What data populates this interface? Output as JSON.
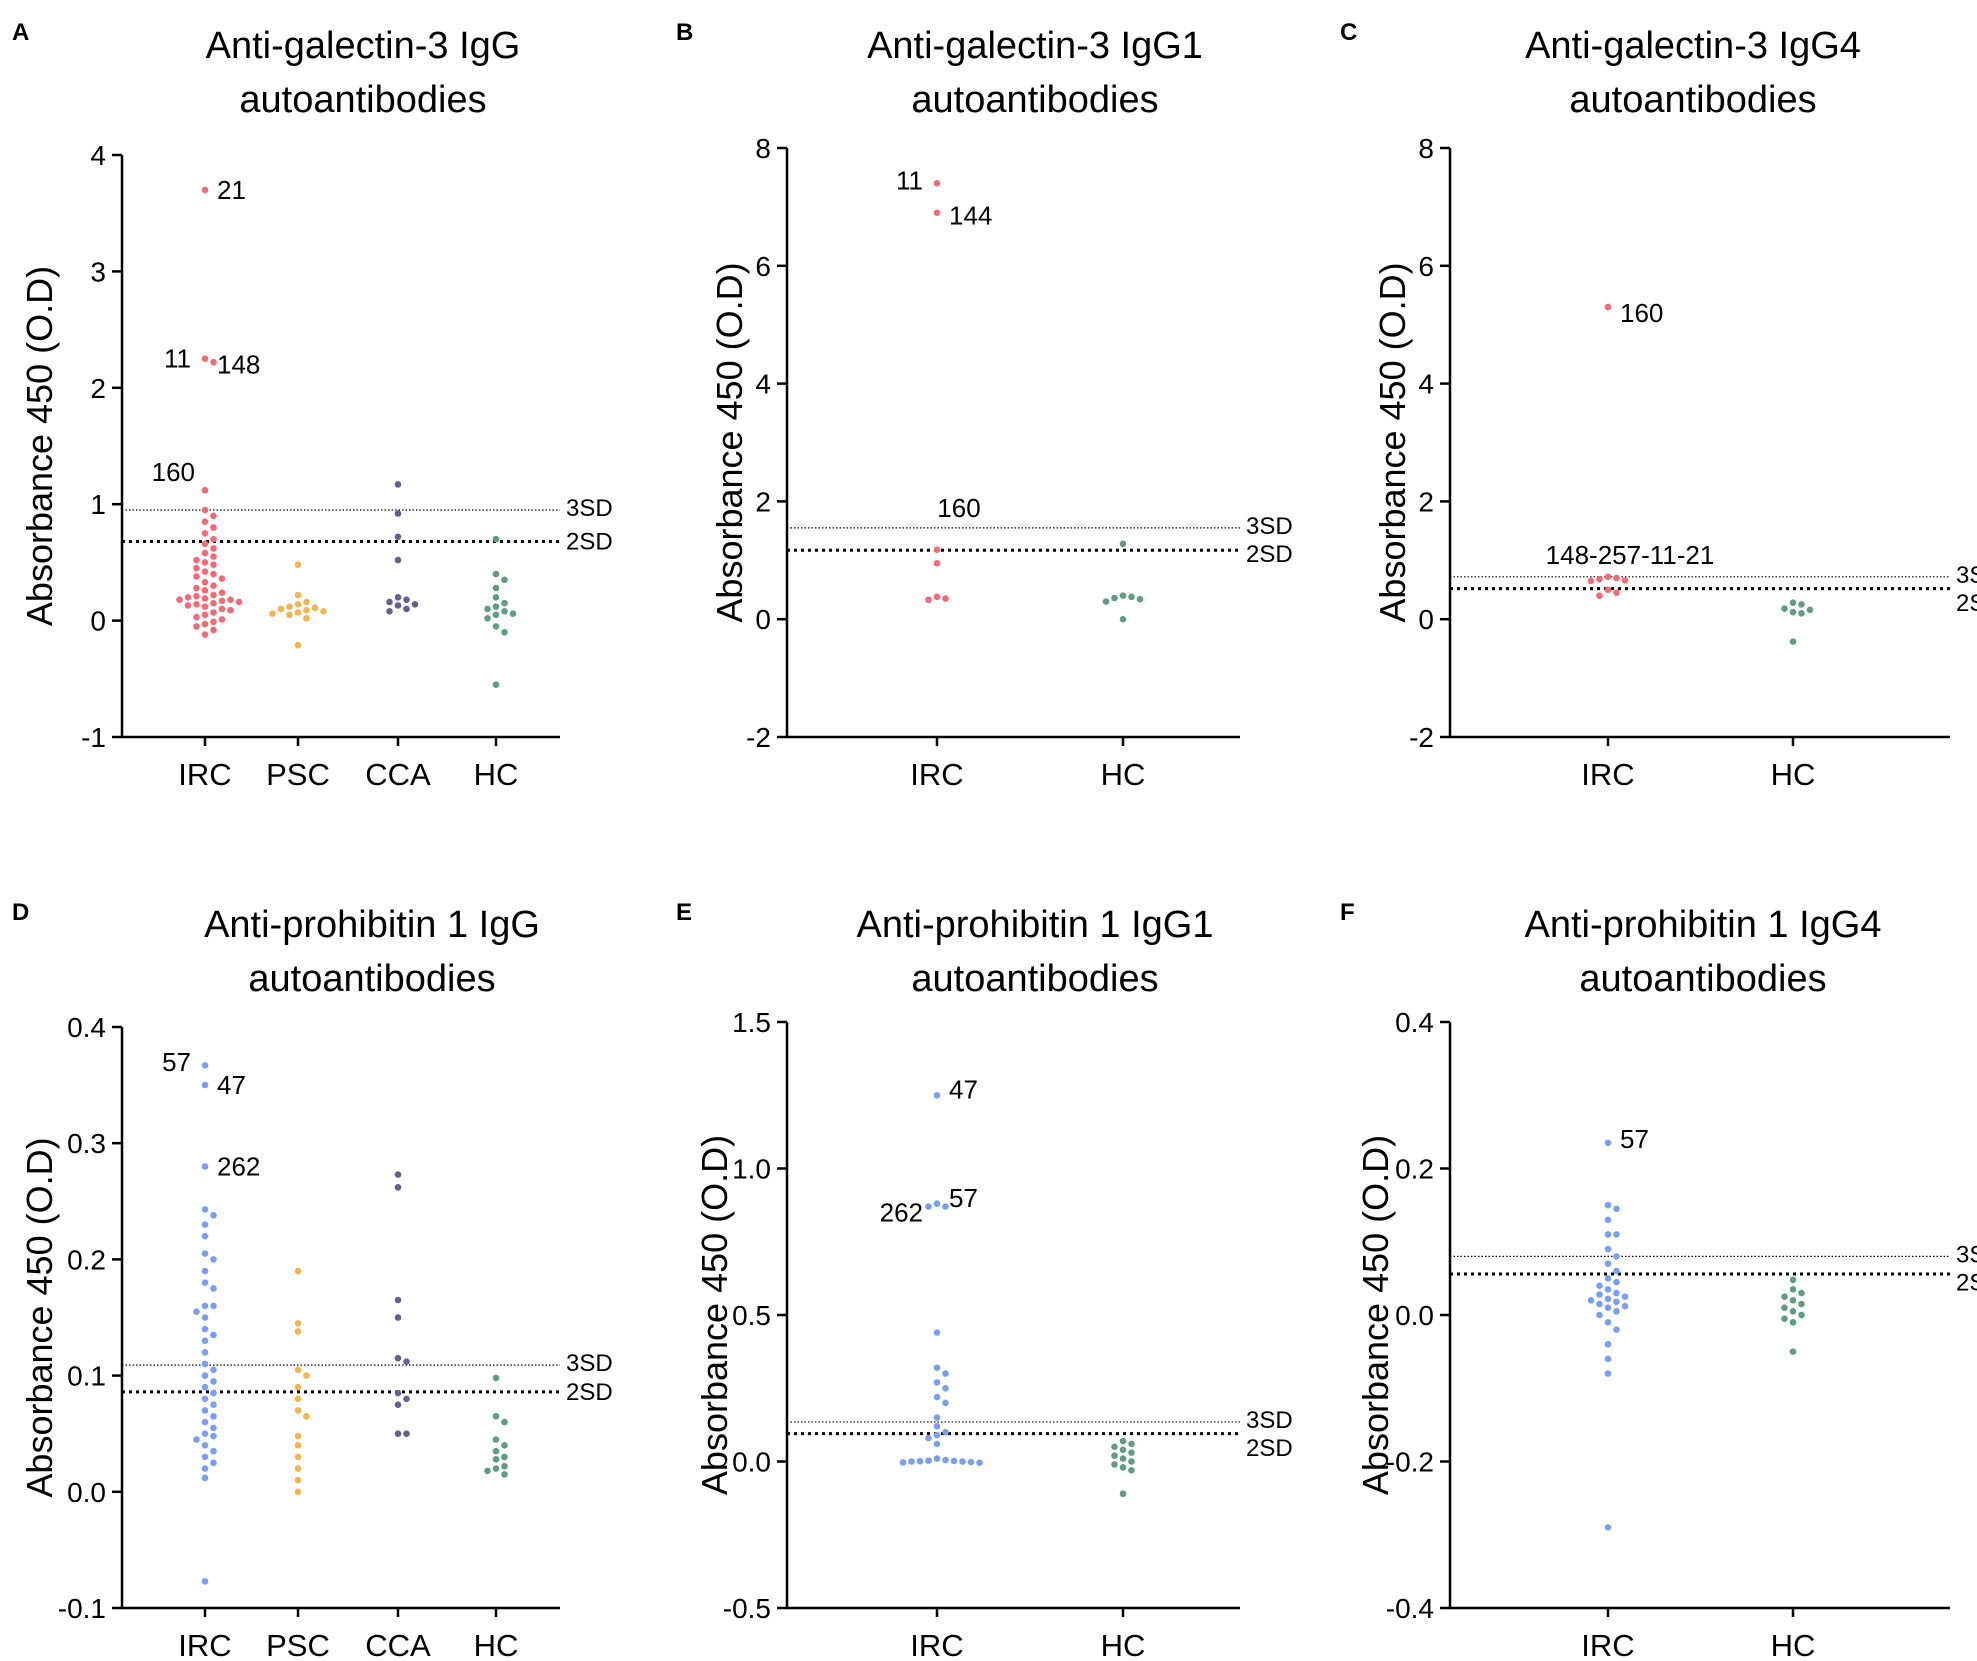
{
  "figure": {
    "sd_labels": {
      "three": "3SD",
      "two": "2SD"
    }
  },
  "chart_data": [
    {
      "panel": "A",
      "type": "scatter",
      "title_lines": [
        "Anti-galectin-3 IgG",
        "autoantibodies"
      ],
      "ylabel": "Absorbance 450 (O.D)",
      "ylim": [
        -1,
        4
      ],
      "yticks": [
        -1,
        0,
        1,
        2,
        3,
        4
      ],
      "tick_decimals": 0,
      "categories": [
        "IRC",
        "PSC",
        "CCA",
        "HC"
      ],
      "thresholds": {
        "three_sd": 0.95,
        "two_sd": 0.68
      },
      "series": [
        {
          "name": "IRC",
          "color": "#f26a73",
          "values": [
            3.7,
            2.25,
            2.22,
            1.12,
            0.95,
            0.9,
            0.85,
            0.8,
            0.75,
            0.7,
            0.66,
            0.62,
            0.58,
            0.55,
            0.52,
            0.5,
            0.48,
            0.45,
            0.42,
            0.4,
            0.38,
            0.36,
            0.33,
            0.3,
            0.28,
            0.26,
            0.24,
            0.22,
            0.21,
            0.2,
            0.19,
            0.18,
            0.18,
            0.17,
            0.16,
            0.15,
            0.14,
            0.13,
            0.12,
            0.1,
            0.09,
            0.07,
            0.05,
            0.03,
            0.01,
            -0.01,
            -0.03,
            -0.05,
            -0.08,
            -0.12
          ]
        },
        {
          "name": "PSC",
          "color": "#f4b54e",
          "values": [
            0.48,
            0.22,
            0.16,
            0.14,
            0.12,
            0.11,
            0.1,
            0.09,
            0.08,
            0.07,
            0.06,
            0.05,
            0.02,
            -0.21
          ]
        },
        {
          "name": "CCA",
          "color": "#6b5d8c",
          "values": [
            1.17,
            0.92,
            0.72,
            0.52,
            0.2,
            0.18,
            0.16,
            0.14,
            0.13,
            0.1,
            0.08
          ]
        },
        {
          "name": "HC",
          "color": "#5e9e7c",
          "values": [
            0.7,
            0.4,
            0.35,
            0.28,
            0.2,
            0.15,
            0.12,
            0.1,
            0.08,
            0.06,
            0.05,
            0.02,
            -0.05,
            -0.1,
            -0.55
          ]
        }
      ],
      "annotations": [
        {
          "text": "21",
          "x": "IRC",
          "y": 3.7,
          "side": "right"
        },
        {
          "text": "11",
          "x": "IRC",
          "y": 2.25,
          "side": "left"
        },
        {
          "text": "148",
          "x": "IRC",
          "y": 2.2,
          "side": "right"
        },
        {
          "text": "160",
          "x": "IRC",
          "y": 1.18,
          "side": "left-above"
        }
      ]
    },
    {
      "panel": "B",
      "type": "scatter",
      "title_lines": [
        "Anti-galectin-3 IgG1",
        "autoantibodies"
      ],
      "ylabel": "Absorbance 450 (O.D)",
      "ylim": [
        -2,
        8
      ],
      "yticks": [
        -2,
        0,
        2,
        4,
        6,
        8
      ],
      "tick_decimals": 0,
      "categories": [
        "IRC",
        "HC"
      ],
      "thresholds": {
        "three_sd": 1.55,
        "two_sd": 1.17
      },
      "series": [
        {
          "name": "IRC",
          "color": "#f26a73",
          "values": [
            7.4,
            6.9,
            1.18,
            0.95,
            0.38,
            0.35,
            0.33
          ]
        },
        {
          "name": "HC",
          "color": "#5e9e7c",
          "values": [
            1.28,
            0.4,
            0.38,
            0.36,
            0.34,
            0.3,
            0.0
          ]
        }
      ],
      "annotations": [
        {
          "text": "11",
          "x": "IRC",
          "y": 7.45,
          "side": "left"
        },
        {
          "text": "144",
          "x": "IRC",
          "y": 6.85,
          "side": "right"
        },
        {
          "text": "160",
          "x": "IRC",
          "y": 1.6,
          "side": "above"
        }
      ]
    },
    {
      "panel": "C",
      "type": "scatter",
      "title_lines": [
        "Anti-galectin-3 IgG4",
        "autoantibodies"
      ],
      "ylabel": "Absorbance 450 (O.D)",
      "ylim": [
        -2,
        8
      ],
      "yticks": [
        -2,
        0,
        2,
        4,
        6,
        8
      ],
      "tick_decimals": 0,
      "categories": [
        "IRC",
        "HC"
      ],
      "thresholds": {
        "three_sd": 0.72,
        "two_sd": 0.52
      },
      "series": [
        {
          "name": "IRC",
          "color": "#f26a73",
          "values": [
            5.3,
            0.72,
            0.7,
            0.68,
            0.66,
            0.65,
            0.5,
            0.45,
            0.4
          ]
        },
        {
          "name": "HC",
          "color": "#5e9e7c",
          "values": [
            0.28,
            0.25,
            0.18,
            0.16,
            0.12,
            0.1,
            -0.38
          ]
        }
      ],
      "annotations": [
        {
          "text": "160",
          "x": "IRC",
          "y": 5.2,
          "side": "right"
        },
        {
          "text": "148-257-11-21",
          "x": "IRC",
          "y": 0.8,
          "side": "above"
        }
      ]
    },
    {
      "panel": "D",
      "type": "scatter",
      "title_lines": [
        "Anti-prohibitin 1 IgG",
        "autoantibodies"
      ],
      "ylabel": "Absorbance 450 (O.D)",
      "ylim": [
        -0.1,
        0.4
      ],
      "yticks": [
        -0.1,
        0.0,
        0.1,
        0.2,
        0.3,
        0.4
      ],
      "tick_decimals": 1,
      "categories": [
        "IRC",
        "PSC",
        "CCA",
        "HC"
      ],
      "thresholds": {
        "three_sd": 0.109,
        "two_sd": 0.086
      },
      "series": [
        {
          "name": "IRC",
          "color": "#7b9ef0",
          "values": [
            0.367,
            0.35,
            0.28,
            0.243,
            0.238,
            0.23,
            0.22,
            0.205,
            0.2,
            0.19,
            0.18,
            0.175,
            0.16,
            0.16,
            0.155,
            0.15,
            0.14,
            0.135,
            0.13,
            0.12,
            0.11,
            0.105,
            0.1,
            0.095,
            0.09,
            0.085,
            0.08,
            0.075,
            0.07,
            0.065,
            0.06,
            0.055,
            0.05,
            0.048,
            0.045,
            0.04,
            0.035,
            0.03,
            0.025,
            0.02,
            0.012,
            -0.077
          ]
        },
        {
          "name": "PSC",
          "color": "#f4b54e",
          "values": [
            0.19,
            0.145,
            0.138,
            0.105,
            0.1,
            0.09,
            0.08,
            0.07,
            0.065,
            0.048,
            0.04,
            0.03,
            0.02,
            0.01,
            0.0
          ]
        },
        {
          "name": "CCA",
          "color": "#6b5d8c",
          "values": [
            0.273,
            0.262,
            0.165,
            0.15,
            0.115,
            0.112,
            0.085,
            0.08,
            0.075,
            0.05,
            0.05
          ]
        },
        {
          "name": "HC",
          "color": "#5e9e7c",
          "values": [
            0.098,
            0.065,
            0.06,
            0.045,
            0.04,
            0.035,
            0.03,
            0.028,
            0.022,
            0.02,
            0.018,
            0.015
          ]
        }
      ],
      "annotations": [
        {
          "text": "57",
          "x": "IRC",
          "y": 0.37,
          "side": "left"
        },
        {
          "text": "47",
          "x": "IRC",
          "y": 0.35,
          "side": "right"
        },
        {
          "text": "262",
          "x": "IRC",
          "y": 0.28,
          "side": "right"
        }
      ]
    },
    {
      "panel": "E",
      "type": "scatter",
      "title_lines": [
        "Anti-prohibitin 1 IgG1",
        "autoantibodies"
      ],
      "ylabel": "Absorbance 450 (O.D)",
      "ylim": [
        -0.5,
        1.5
      ],
      "yticks": [
        -0.5,
        0.0,
        0.5,
        1.0,
        1.5
      ],
      "tick_decimals": 1,
      "categories": [
        "IRC",
        "HC"
      ],
      "thresholds": {
        "three_sd": 0.135,
        "two_sd": 0.095
      },
      "series": [
        {
          "name": "IRC",
          "color": "#7b9ef0",
          "values": [
            1.25,
            0.88,
            0.87,
            0.87,
            0.44,
            0.32,
            0.3,
            0.27,
            0.25,
            0.22,
            0.2,
            0.15,
            0.12,
            0.1,
            0.09,
            0.08,
            0.06,
            0.01,
            0.005,
            0.003,
            0.002,
            0.001,
            0.0,
            0.0,
            -0.002,
            -0.003,
            -0.004
          ]
        },
        {
          "name": "HC",
          "color": "#5e9e7c",
          "values": [
            0.07,
            0.06,
            0.05,
            0.04,
            0.03,
            0.02,
            0.01,
            0.0,
            -0.01,
            -0.02,
            -0.03,
            -0.11
          ]
        }
      ],
      "annotations": [
        {
          "text": "47",
          "x": "IRC",
          "y": 1.27,
          "side": "right"
        },
        {
          "text": "57",
          "x": "IRC",
          "y": 0.9,
          "side": "right"
        },
        {
          "text": "262",
          "x": "IRC",
          "y": 0.85,
          "side": "left"
        }
      ]
    },
    {
      "panel": "F",
      "type": "scatter",
      "title_lines": [
        "Anti-prohibitin 1 IgG4",
        "autoantibodies"
      ],
      "ylabel": "Absorbance 450 (O.D)",
      "ylim": [
        -0.4,
        0.4
      ],
      "yticks": [
        -0.4,
        -0.2,
        0.0,
        0.2,
        0.4
      ],
      "tick_decimals": 1,
      "categories": [
        "IRC",
        "HC"
      ],
      "thresholds": {
        "three_sd": 0.08,
        "two_sd": 0.056
      },
      "series": [
        {
          "name": "IRC",
          "color": "#7b9ef0",
          "values": [
            0.235,
            0.15,
            0.145,
            0.13,
            0.11,
            0.11,
            0.09,
            0.08,
            0.07,
            0.06,
            0.05,
            0.045,
            0.04,
            0.035,
            0.03,
            0.028,
            0.025,
            0.022,
            0.02,
            0.018,
            0.015,
            0.012,
            0.01,
            0.005,
            0.0,
            -0.01,
            -0.02,
            -0.04,
            -0.06,
            -0.08,
            -0.29
          ]
        },
        {
          "name": "HC",
          "color": "#5e9e7c",
          "values": [
            0.048,
            0.035,
            0.03,
            0.025,
            0.02,
            0.015,
            0.01,
            0.005,
            0.0,
            -0.005,
            -0.01,
            -0.05
          ]
        }
      ],
      "annotations": [
        {
          "text": "57",
          "x": "IRC",
          "y": 0.24,
          "side": "right"
        }
      ]
    }
  ]
}
